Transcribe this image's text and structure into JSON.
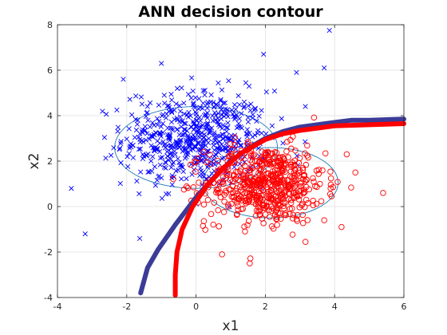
{
  "chart_data": {
    "type": "scatter",
    "title": "ANN decision contour",
    "xlabel": "x1",
    "ylabel": "x2",
    "xlim": [
      -4,
      6
    ],
    "ylim": [
      -4,
      8
    ],
    "x_ticks": [
      "-4",
      "-2",
      "0",
      "2",
      "4",
      "6"
    ],
    "y_ticks": [
      "-4",
      "-2",
      "0",
      "2",
      "4",
      "6",
      "8"
    ],
    "grid": true,
    "legend": "none",
    "colors": {
      "class_1": "#0000ff",
      "class_2": "#ff0000",
      "boundary_1": "#3b3b98",
      "boundary_2": "#ff0000",
      "ellipse": "#1f77b4"
    },
    "series": [
      {
        "marker": "x",
        "color": "#0000ff",
        "distribution": {
          "mean": [
            0,
            3
          ],
          "std": [
            1.05,
            1.05
          ],
          "count": 600
        },
        "points": [
          [
            3.85,
            7.75
          ],
          [
            -3.2,
            -1.2
          ],
          [
            -3.6,
            0.8
          ],
          [
            -2.1,
            5.6
          ],
          [
            -1.0,
            6.3
          ],
          [
            1.95,
            6.7
          ],
          [
            2.9,
            5.9
          ],
          [
            3.7,
            6.1
          ]
        ]
      },
      {
        "marker": "o",
        "color": "#ff0000",
        "distribution": {
          "mean": [
            2,
            1
          ],
          "std": [
            0.85,
            0.85
          ],
          "count": 600
        },
        "points": [
          [
            5.4,
            0.6
          ],
          [
            4.35,
            2.3
          ],
          [
            4.2,
            -0.9
          ],
          [
            0.75,
            -2.1
          ],
          [
            1.55,
            -2.5
          ],
          [
            0.2,
            -0.85
          ],
          [
            4.6,
            1.5
          ],
          [
            3.7,
            -0.6
          ]
        ]
      }
    ],
    "curves": [
      {
        "color": "#3b3b98",
        "points": [
          [
            -1.6,
            -3.8
          ],
          [
            -1.4,
            -2.7
          ],
          [
            -1.1,
            -1.9
          ],
          [
            -0.6,
            -0.8
          ],
          [
            0.0,
            0.4
          ],
          [
            0.5,
            1.25
          ],
          [
            1.0,
            2.0
          ],
          [
            1.5,
            2.55
          ],
          [
            2.0,
            3.0
          ],
          [
            2.5,
            3.3
          ],
          [
            3.0,
            3.5
          ],
          [
            3.5,
            3.6
          ],
          [
            4.0,
            3.7
          ],
          [
            4.5,
            3.8
          ],
          [
            5.0,
            3.8
          ],
          [
            6.0,
            3.85
          ]
        ]
      },
      {
        "color": "#ff0000",
        "points": [
          [
            -0.6,
            -3.9
          ],
          [
            -0.6,
            -3.0
          ],
          [
            -0.55,
            -2.0
          ],
          [
            -0.4,
            -1.0
          ],
          [
            -0.1,
            0.0
          ],
          [
            0.3,
            0.9
          ],
          [
            0.8,
            1.7
          ],
          [
            1.3,
            2.35
          ],
          [
            2.0,
            2.95
          ],
          [
            2.5,
            3.2
          ],
          [
            3.0,
            3.35
          ],
          [
            3.5,
            3.45
          ],
          [
            4.0,
            3.55
          ],
          [
            5.0,
            3.6
          ],
          [
            6.0,
            3.65
          ]
        ]
      }
    ],
    "ellipses": [
      {
        "center": [
          0.0,
          2.6
        ],
        "rx": 2.35,
        "ry": 1.8,
        "rotation_deg": 0,
        "color": "#1f77b4"
      },
      {
        "center": [
          2.15,
          1.05
        ],
        "rx": 1.95,
        "ry": 1.55,
        "rotation_deg": 0,
        "color": "#1f77b4"
      }
    ]
  }
}
